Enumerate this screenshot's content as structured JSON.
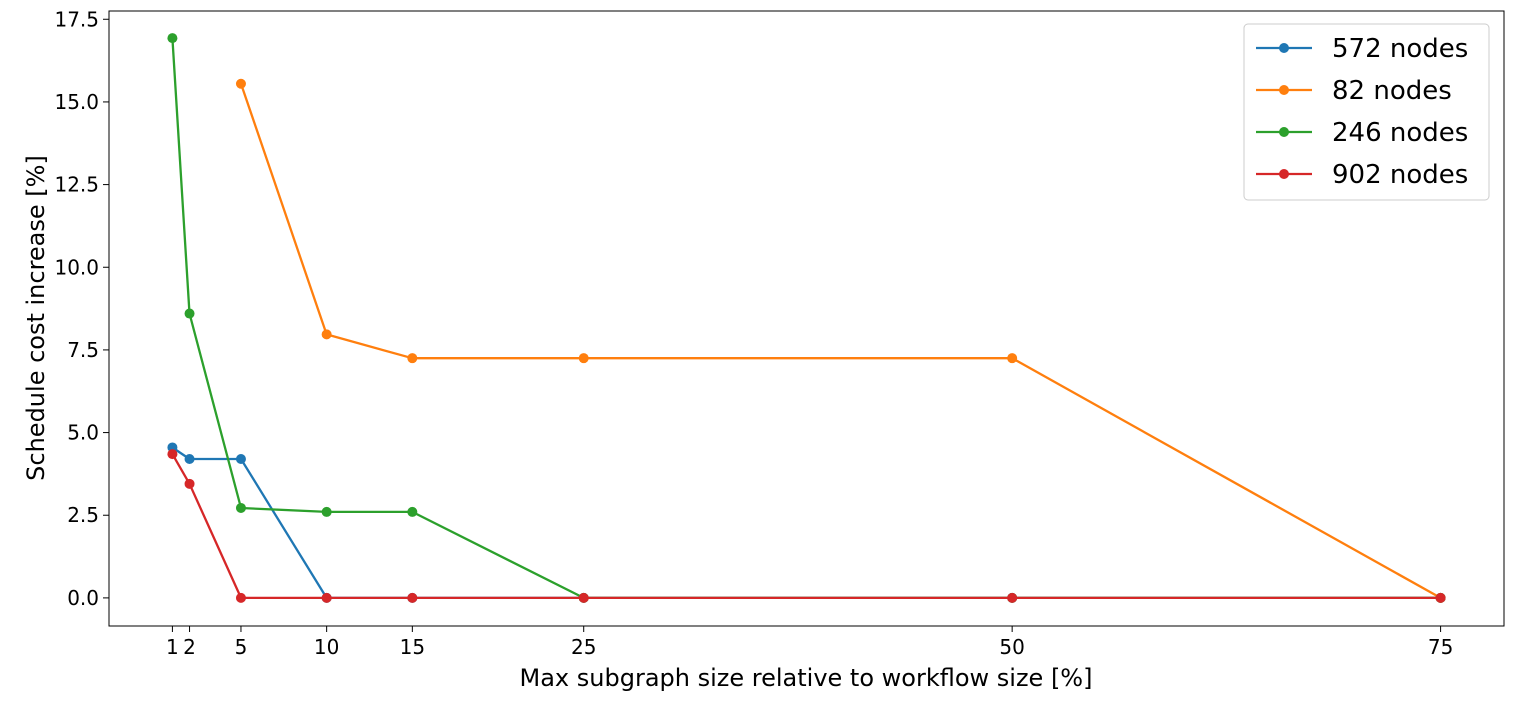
{
  "chart_data": {
    "type": "line",
    "title": "",
    "xlabel": "Max subgraph size relative to workflow size [%]",
    "ylabel": "Schedule cost increase [%]",
    "xlim": [
      -2.7,
      78.7
    ],
    "ylim": [
      -0.85,
      17.75
    ],
    "xticks": [
      1,
      2,
      5,
      10,
      15,
      25,
      50,
      75
    ],
    "xtick_labels": [
      "1",
      "2",
      "5",
      "10",
      "15",
      "25",
      "50",
      "75"
    ],
    "yticks": [
      0,
      2.5,
      5,
      7.5,
      10,
      12.5,
      15,
      17.5
    ],
    "ytick_labels": [
      "0.0",
      "2.5",
      "5.0",
      "7.5",
      "10.0",
      "12.5",
      "15.0",
      "17.5"
    ],
    "grid": false,
    "legend_position": "top-right",
    "series": [
      {
        "name": "572 nodes",
        "color": "#1f77b4",
        "x": [
          1,
          2,
          5,
          10,
          15,
          25,
          50,
          75
        ],
        "y": [
          4.55,
          4.2,
          4.2,
          0,
          0,
          0,
          0,
          0
        ]
      },
      {
        "name": "82 nodes",
        "color": "#ff7f0e",
        "x": [
          5,
          10,
          15,
          25,
          50,
          75
        ],
        "y": [
          15.55,
          7.97,
          7.25,
          7.25,
          7.25,
          0
        ]
      },
      {
        "name": "246 nodes",
        "color": "#2ca02c",
        "x": [
          1,
          2,
          5,
          10,
          15,
          25,
          50,
          75
        ],
        "y": [
          16.93,
          8.6,
          2.72,
          2.6,
          2.6,
          0,
          0,
          0
        ]
      },
      {
        "name": "902 nodes",
        "color": "#d62728",
        "x": [
          1,
          2,
          5,
          10,
          15,
          25,
          50,
          75
        ],
        "y": [
          4.35,
          3.45,
          0,
          0,
          0,
          0,
          0,
          0
        ]
      }
    ]
  }
}
